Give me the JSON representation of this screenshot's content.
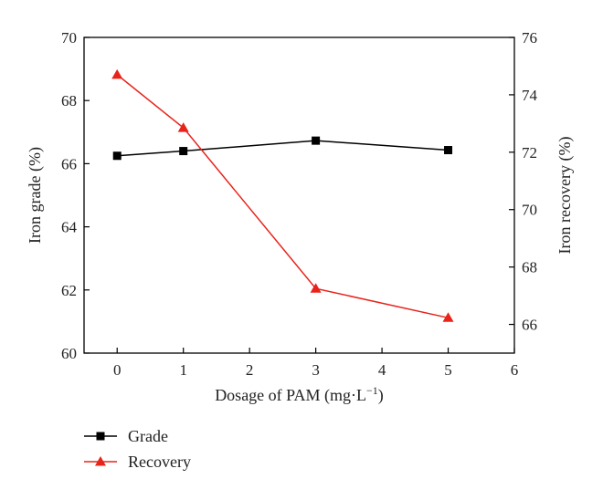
{
  "chart_data": {
    "type": "line",
    "xlabel": "Dosage of PAM (mg·L",
    "xlabel_sup": "−1",
    "xlabel_close": ")",
    "ylabel": "Iron grade (%)",
    "y2label": "Iron recovery (%)",
    "xlim": [
      -0.5,
      6
    ],
    "ylim": [
      60,
      70
    ],
    "y2lim": [
      65,
      76
    ],
    "xticks": [
      0,
      1,
      2,
      3,
      4,
      5,
      6
    ],
    "yticks": [
      60,
      62,
      64,
      66,
      68,
      70
    ],
    "y2ticks": [
      66,
      68,
      70,
      72,
      74,
      76
    ],
    "grid": false,
    "legend_position": "bottom-left",
    "series": [
      {
        "name": "Grade",
        "axis": "left",
        "color": "#000000",
        "marker": "square",
        "x": [
          0,
          1,
          3,
          5
        ],
        "y": [
          66.25,
          66.4,
          66.73,
          66.43
        ]
      },
      {
        "name": "Recovery",
        "axis": "right",
        "color": "#e8231a",
        "marker": "triangle",
        "x": [
          0,
          1,
          3,
          5
        ],
        "y": [
          74.7,
          72.85,
          67.25,
          66.23
        ]
      }
    ]
  }
}
